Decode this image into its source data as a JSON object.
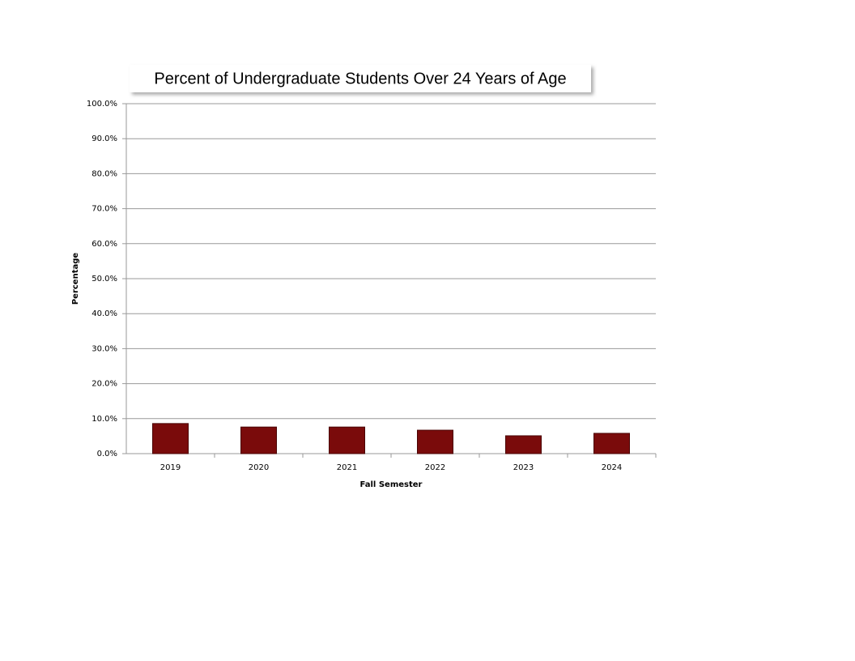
{
  "chart_data": {
    "type": "bar",
    "title": "Percent of Undergraduate Students Over 24 Years of Age",
    "x_label": "Fall Semester",
    "y_label": "Percentage",
    "categories": [
      "2019",
      "2020",
      "2021",
      "2022",
      "2023",
      "2024"
    ],
    "values": [
      8.6,
      7.6,
      7.6,
      6.7,
      5.1,
      5.8
    ],
    "color": "#7a0b0b",
    "ylim": [
      0,
      100
    ],
    "yticks": [
      {
        "value": 0,
        "label": "0.0%"
      },
      {
        "value": 10,
        "label": "10.0%"
      },
      {
        "value": 20,
        "label": "20.0%"
      },
      {
        "value": 30,
        "label": "30.0%"
      },
      {
        "value": 40,
        "label": "40.0%"
      },
      {
        "value": 50,
        "label": "50.0%"
      },
      {
        "value": 60,
        "label": "60.0%"
      },
      {
        "value": 70,
        "label": "70.0%"
      },
      {
        "value": 80,
        "label": "80.0%"
      },
      {
        "value": 90,
        "label": "90.0%"
      },
      {
        "value": 100,
        "label": "100.0%"
      }
    ],
    "grid": true
  }
}
